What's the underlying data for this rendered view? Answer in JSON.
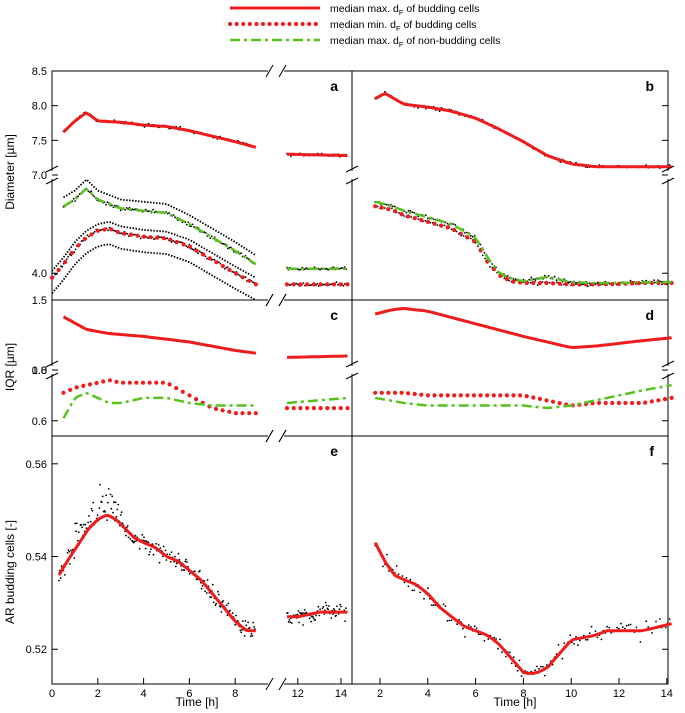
{
  "legend": [
    {
      "label": "median max. d",
      "sub": "F",
      "tail": " of budding cells",
      "color": "#ee1c1c",
      "style": "solid"
    },
    {
      "label": "median min. d",
      "sub": "F",
      "tail": " of budding cells",
      "color": "#ee1c1c",
      "style": "dotted"
    },
    {
      "label": "median max. d",
      "sub": "F",
      "tail": " of non-budding cells",
      "color": "#55c21e",
      "style": "dashdot"
    }
  ],
  "colors": {
    "red": "#ee1c1c",
    "green": "#55c21e",
    "black": "#000000"
  },
  "y_labels": {
    "diameter": "Diameter [µm]",
    "iqr": "IQR [µm]",
    "ar": "AR budding cells [-]"
  },
  "x_label": "Time [h]",
  "chart_data": [
    {
      "panel": "a",
      "type": "line",
      "y_ticks_upper": [
        "8.5",
        "8.0",
        "7.5",
        "7.0"
      ],
      "y_ticks_lower": [
        "4.0"
      ],
      "series": [
        {
          "name": "median max. dF of budding cells",
          "style": "solid-upper",
          "x": [
            0.5,
            1,
            1.5,
            2,
            3,
            4,
            5,
            6,
            7,
            8,
            8.9,
            11.5,
            14.3
          ],
          "y": [
            7.62,
            7.78,
            7.9,
            7.78,
            7.76,
            7.72,
            7.7,
            7.64,
            7.56,
            7.48,
            7.4,
            7.3,
            7.28
          ]
        },
        {
          "name": "median min. dF of budding cells",
          "style": "dotted",
          "x": [
            0,
            0.5,
            1,
            1.5,
            2,
            2.5,
            3,
            4,
            5,
            6,
            7,
            8,
            8.9,
            11.5,
            14.3
          ],
          "y": [
            3.9,
            4.2,
            4.55,
            4.8,
            4.95,
            5.0,
            4.9,
            4.82,
            4.78,
            4.6,
            4.3,
            4.0,
            3.75,
            3.75,
            3.75
          ]
        },
        {
          "name": "median max. dF of non-budding cells",
          "style": "dashdot",
          "x": [
            0.5,
            1,
            1.5,
            2,
            2.5,
            3,
            4,
            5,
            6,
            7,
            8,
            8.9,
            11.5,
            14.3
          ],
          "y": [
            5.5,
            5.65,
            5.9,
            5.65,
            5.55,
            5.45,
            5.4,
            5.35,
            5.1,
            4.8,
            4.5,
            4.2,
            4.1,
            4.1
          ]
        }
      ]
    },
    {
      "panel": "b",
      "type": "line",
      "series": [
        {
          "name": "median max. dF of budding cells",
          "style": "solid-upper",
          "x": [
            1.8,
            2.2,
            2.6,
            3,
            3.5,
            4,
            5,
            6,
            7,
            8,
            9,
            10,
            11,
            12,
            13,
            14.2
          ],
          "y": [
            8.1,
            8.18,
            8.1,
            8.02,
            8.0,
            7.98,
            7.92,
            7.82,
            7.66,
            7.48,
            7.28,
            7.16,
            7.12,
            7.12,
            7.12,
            7.12
          ]
        },
        {
          "name": "median min. dF of budding cells",
          "style": "dotted",
          "x": [
            1.8,
            2.5,
            3,
            4,
            5,
            6,
            6.5,
            7,
            7.5,
            8,
            9,
            10,
            11,
            12,
            13,
            14.2
          ],
          "y": [
            5.5,
            5.42,
            5.3,
            5.15,
            5.0,
            4.7,
            4.25,
            3.95,
            3.82,
            3.78,
            3.78,
            3.75,
            3.75,
            3.76,
            3.78,
            3.78
          ]
        },
        {
          "name": "median max. dF of non-budding cells",
          "style": "dashdot",
          "x": [
            1.8,
            2.5,
            3,
            4,
            5,
            6,
            6.5,
            7,
            7.5,
            8,
            9,
            10,
            11,
            12,
            13,
            14.2
          ],
          "y": [
            5.6,
            5.5,
            5.4,
            5.25,
            5.1,
            4.8,
            4.35,
            4.0,
            3.88,
            3.82,
            3.92,
            3.8,
            3.78,
            3.78,
            3.8,
            3.8
          ]
        }
      ]
    },
    {
      "panel": "c",
      "type": "line",
      "y_ticks_upper": [
        "1.5",
        "1.0"
      ],
      "y_ticks_lower": [
        "0.8",
        "0.6"
      ],
      "series": [
        {
          "name": "median max. dF of budding cells",
          "style": "solid",
          "x": [
            0.5,
            1.5,
            2.5,
            4,
            6,
            8,
            8.9,
            11.5,
            14.3
          ],
          "y": [
            1.38,
            1.29,
            1.26,
            1.24,
            1.2,
            1.14,
            1.12,
            1.09,
            1.1
          ]
        },
        {
          "name": "median min. dF of budding cells",
          "style": "dotted",
          "x": [
            0.5,
            1,
            2,
            2.5,
            3,
            4,
            5,
            6,
            7,
            8,
            8.9,
            11.5,
            14.3
          ],
          "y": [
            0.71,
            0.73,
            0.75,
            0.76,
            0.75,
            0.75,
            0.75,
            0.7,
            0.65,
            0.63,
            0.63,
            0.65,
            0.65
          ]
        },
        {
          "name": "median max. dF of non-budding cells",
          "style": "dashdot",
          "x": [
            0.5,
            1,
            1.5,
            2,
            2.5,
            3,
            4,
            5,
            6,
            7,
            8,
            8.9,
            11.5,
            14.3
          ],
          "y": [
            0.61,
            0.69,
            0.71,
            0.69,
            0.67,
            0.67,
            0.69,
            0.69,
            0.67,
            0.66,
            0.66,
            0.66,
            0.67,
            0.69
          ]
        }
      ]
    },
    {
      "panel": "d",
      "type": "line",
      "series": [
        {
          "name": "median max. dF of budding cells",
          "style": "solid",
          "x": [
            1.8,
            2.5,
            3,
            4,
            6,
            8,
            10,
            11,
            12,
            13,
            14.2
          ],
          "y": [
            1.4,
            1.43,
            1.44,
            1.42,
            1.33,
            1.24,
            1.16,
            1.17,
            1.19,
            1.21,
            1.23
          ]
        },
        {
          "name": "median min. dF of budding cells",
          "style": "dotted",
          "x": [
            1.8,
            3,
            4,
            6,
            8,
            9,
            10,
            11,
            12,
            13,
            14.2
          ],
          "y": [
            0.71,
            0.71,
            0.7,
            0.7,
            0.7,
            0.68,
            0.66,
            0.67,
            0.67,
            0.67,
            0.69
          ]
        },
        {
          "name": "median max. dF of non-budding cells",
          "style": "dashdot",
          "x": [
            1.8,
            3,
            4,
            6,
            8,
            9,
            10,
            11,
            12,
            13,
            14.2
          ],
          "y": [
            0.69,
            0.67,
            0.66,
            0.66,
            0.66,
            0.65,
            0.66,
            0.68,
            0.7,
            0.72,
            0.74
          ]
        }
      ]
    },
    {
      "panel": "e",
      "type": "line",
      "y_ticks": [
        "0.56",
        "0.54",
        "0.52"
      ],
      "x_ticks": [
        "0",
        "2",
        "4",
        "6",
        "8",
        "12",
        "14"
      ],
      "series": [
        {
          "name": "median max. dF of budding cells",
          "style": "solid",
          "x": [
            0.3,
            0.8,
            1.2,
            1.6,
            2.0,
            2.4,
            2.8,
            3.2,
            3.6,
            4,
            4.5,
            5,
            5.5,
            6,
            6.5,
            7,
            7.5,
            8,
            8.5,
            8.9,
            11.5,
            12,
            13,
            14.3
          ],
          "y": [
            0.536,
            0.54,
            0.543,
            0.546,
            0.548,
            0.549,
            0.548,
            0.546,
            0.544,
            0.543,
            0.542,
            0.54,
            0.539,
            0.537,
            0.535,
            0.532,
            0.529,
            0.526,
            0.524,
            0.524,
            0.527,
            0.527,
            0.528,
            0.528
          ]
        }
      ]
    },
    {
      "panel": "f",
      "type": "line",
      "x_ticks": [
        "2",
        "4",
        "6",
        "8",
        "10",
        "12",
        "14"
      ],
      "series": [
        {
          "name": "median max. dF of budding cells",
          "style": "solid",
          "x": [
            1.8,
            2.2,
            2.6,
            3,
            3.5,
            4,
            4.5,
            5,
            5.5,
            6,
            6.5,
            7,
            7.5,
            8,
            8.3,
            8.6,
            9,
            9.5,
            10,
            10.5,
            11,
            11.5,
            12,
            13,
            14.2
          ],
          "y": [
            0.543,
            0.539,
            0.536,
            0.535,
            0.534,
            0.532,
            0.529,
            0.527,
            0.525,
            0.524,
            0.523,
            0.521,
            0.518,
            0.515,
            0.5147,
            0.515,
            0.516,
            0.519,
            0.522,
            0.5225,
            0.523,
            0.524,
            0.524,
            0.524,
            0.5255
          ]
        }
      ]
    }
  ]
}
